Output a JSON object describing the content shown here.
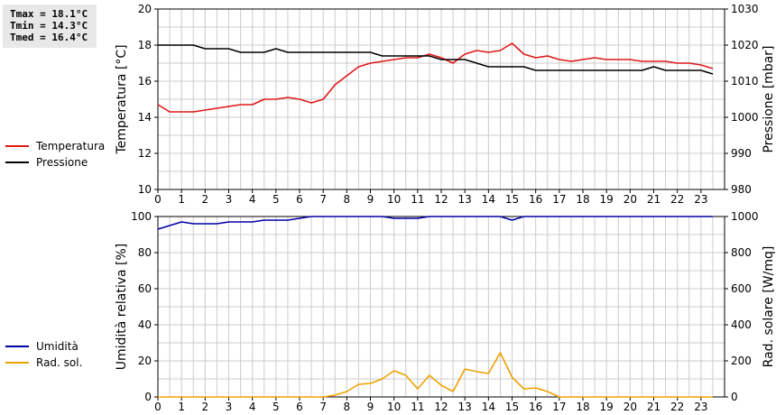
{
  "stats": {
    "tmax": "Tmax = 18.1°C",
    "tmin": "Tmin = 14.3°C",
    "tmed": "Tmed = 16.4°C"
  },
  "colors": {
    "temperature": "#e01818",
    "pressure": "#000000",
    "humidity": "#0000aa",
    "radiation": "#f0a000",
    "grid": "#cccccc",
    "stats_bg": "#e8e8e8"
  },
  "chart_data": [
    {
      "type": "line",
      "title": "",
      "xlabel": "",
      "x_ticks": [
        "0",
        "1",
        "2",
        "3",
        "4",
        "5",
        "6",
        "7",
        "8",
        "9",
        "10",
        "11",
        "12",
        "13",
        "14",
        "15",
        "16",
        "17",
        "18",
        "19",
        "20",
        "21",
        "22",
        "23"
      ],
      "xlim": [
        0,
        24
      ],
      "ylabel_left": "Temperatura [°C]",
      "ylabel_right": "Pressione [mbar]",
      "ylim_left": [
        10,
        20
      ],
      "ylim_right": [
        980,
        1030
      ],
      "yticks_left": [
        "10",
        "12",
        "14",
        "16",
        "18",
        "20"
      ],
      "yticks_right": [
        "980",
        "990",
        "1000",
        "1010",
        "1020",
        "1030"
      ],
      "grid": true,
      "series": [
        {
          "name": "Temperatura",
          "axis": "left",
          "color": "#e01818",
          "points": [
            [
              0,
              14.7
            ],
            [
              0.5,
              14.3
            ],
            [
              1,
              14.3
            ],
            [
              1.5,
              14.3
            ],
            [
              2,
              14.4
            ],
            [
              2.5,
              14.5
            ],
            [
              3,
              14.6
            ],
            [
              3.5,
              14.7
            ],
            [
              4,
              14.7
            ],
            [
              4.5,
              15.0
            ],
            [
              5,
              15.0
            ],
            [
              5.5,
              15.1
            ],
            [
              6,
              15.0
            ],
            [
              6.5,
              14.8
            ],
            [
              7,
              15.0
            ],
            [
              7.5,
              15.8
            ],
            [
              8,
              16.3
            ],
            [
              8.5,
              16.8
            ],
            [
              9,
              17.0
            ],
            [
              9.5,
              17.1
            ],
            [
              10,
              17.2
            ],
            [
              10.5,
              17.3
            ],
            [
              11,
              17.3
            ],
            [
              11.5,
              17.5
            ],
            [
              12,
              17.3
            ],
            [
              12.5,
              17.0
            ],
            [
              13,
              17.5
            ],
            [
              13.5,
              17.7
            ],
            [
              14,
              17.6
            ],
            [
              14.5,
              17.7
            ],
            [
              15,
              18.1
            ],
            [
              15.5,
              17.5
            ],
            [
              16,
              17.3
            ],
            [
              16.5,
              17.4
            ],
            [
              17,
              17.2
            ],
            [
              17.5,
              17.1
            ],
            [
              18,
              17.2
            ],
            [
              18.5,
              17.3
            ],
            [
              19,
              17.2
            ],
            [
              19.5,
              17.2
            ],
            [
              20,
              17.2
            ],
            [
              20.5,
              17.1
            ],
            [
              21,
              17.1
            ],
            [
              21.5,
              17.1
            ],
            [
              22,
              17.0
            ],
            [
              22.5,
              17.0
            ],
            [
              23,
              16.9
            ],
            [
              23.5,
              16.7
            ]
          ]
        },
        {
          "name": "Pressione",
          "axis": "right",
          "color": "#000000",
          "points": [
            [
              0,
              1020
            ],
            [
              0.5,
              1020
            ],
            [
              1,
              1020
            ],
            [
              1.5,
              1020
            ],
            [
              2,
              1019
            ],
            [
              2.5,
              1019
            ],
            [
              3,
              1019
            ],
            [
              3.5,
              1018
            ],
            [
              4,
              1018
            ],
            [
              4.5,
              1018
            ],
            [
              5,
              1019
            ],
            [
              5.5,
              1018
            ],
            [
              6,
              1018
            ],
            [
              6.5,
              1018
            ],
            [
              7,
              1018
            ],
            [
              7.5,
              1018
            ],
            [
              8,
              1018
            ],
            [
              8.5,
              1018
            ],
            [
              9,
              1018
            ],
            [
              9.5,
              1017
            ],
            [
              10,
              1017
            ],
            [
              10.5,
              1017
            ],
            [
              11,
              1017
            ],
            [
              11.5,
              1017
            ],
            [
              12,
              1016
            ],
            [
              12.5,
              1016
            ],
            [
              13,
              1016
            ],
            [
              13.5,
              1015
            ],
            [
              14,
              1014
            ],
            [
              14.5,
              1014
            ],
            [
              15,
              1014
            ],
            [
              15.5,
              1014
            ],
            [
              16,
              1013
            ],
            [
              16.5,
              1013
            ],
            [
              17,
              1013
            ],
            [
              17.5,
              1013
            ],
            [
              18,
              1013
            ],
            [
              18.5,
              1013
            ],
            [
              19,
              1013
            ],
            [
              19.5,
              1013
            ],
            [
              20,
              1013
            ],
            [
              20.5,
              1013
            ],
            [
              21,
              1014
            ],
            [
              21.5,
              1013
            ],
            [
              22,
              1013
            ],
            [
              22.5,
              1013
            ],
            [
              23,
              1013
            ],
            [
              23.5,
              1012
            ]
          ]
        }
      ]
    },
    {
      "type": "line",
      "title": "",
      "xlabel": "",
      "x_ticks": [
        "0",
        "1",
        "2",
        "3",
        "4",
        "5",
        "6",
        "7",
        "8",
        "9",
        "10",
        "11",
        "12",
        "13",
        "14",
        "15",
        "16",
        "17",
        "18",
        "19",
        "20",
        "21",
        "22",
        "23"
      ],
      "xlim": [
        0,
        24
      ],
      "ylabel_left": "Umidità relativa [%]",
      "ylabel_right": "Rad. solare [W/mq]",
      "ylim_left": [
        0,
        100
      ],
      "ylim_right": [
        0,
        1000
      ],
      "yticks_left": [
        "0",
        "20",
        "40",
        "60",
        "80",
        "100"
      ],
      "yticks_right": [
        "0",
        "200",
        "400",
        "600",
        "800",
        "1000"
      ],
      "grid": true,
      "series": [
        {
          "name": "Umidità",
          "axis": "left",
          "color": "#0000aa",
          "points": [
            [
              0,
              93
            ],
            [
              0.5,
              95
            ],
            [
              1,
              97
            ],
            [
              1.5,
              96
            ],
            [
              2,
              96
            ],
            [
              2.5,
              96
            ],
            [
              3,
              97
            ],
            [
              3.5,
              97
            ],
            [
              4,
              97
            ],
            [
              4.5,
              98
            ],
            [
              5,
              98
            ],
            [
              5.5,
              98
            ],
            [
              6,
              99
            ],
            [
              6.5,
              100
            ],
            [
              7,
              100
            ],
            [
              8,
              100
            ],
            [
              9,
              100
            ],
            [
              9.5,
              100
            ],
            [
              10,
              99
            ],
            [
              10.5,
              99
            ],
            [
              11,
              99
            ],
            [
              11.5,
              100
            ],
            [
              12,
              100
            ],
            [
              13,
              100
            ],
            [
              14,
              100
            ],
            [
              14.5,
              100
            ],
            [
              15,
              98
            ],
            [
              15.5,
              100
            ],
            [
              16,
              100
            ],
            [
              17,
              100
            ],
            [
              18,
              100
            ],
            [
              19,
              100
            ],
            [
              20,
              100
            ],
            [
              21,
              100
            ],
            [
              22,
              100
            ],
            [
              23,
              100
            ],
            [
              23.5,
              100
            ]
          ]
        },
        {
          "name": "Rad. sol.",
          "axis": "right",
          "color": "#f0a000",
          "points": [
            [
              0,
              0
            ],
            [
              1,
              0
            ],
            [
              2,
              0
            ],
            [
              3,
              0
            ],
            [
              4,
              0
            ],
            [
              5,
              0
            ],
            [
              6,
              0
            ],
            [
              7,
              0
            ],
            [
              7.5,
              10
            ],
            [
              8,
              30
            ],
            [
              8.5,
              70
            ],
            [
              9,
              75
            ],
            [
              9.5,
              100
            ],
            [
              10,
              145
            ],
            [
              10.5,
              120
            ],
            [
              11,
              45
            ],
            [
              11.5,
              120
            ],
            [
              12,
              65
            ],
            [
              12.5,
              30
            ],
            [
              13,
              155
            ],
            [
              13.5,
              140
            ],
            [
              14,
              130
            ],
            [
              14.5,
              245
            ],
            [
              15,
              110
            ],
            [
              15.5,
              45
            ],
            [
              16,
              50
            ],
            [
              16.5,
              30
            ],
            [
              17,
              0
            ],
            [
              18,
              0
            ],
            [
              19,
              0
            ],
            [
              20,
              0
            ],
            [
              21,
              0
            ],
            [
              22,
              0
            ],
            [
              23,
              0
            ],
            [
              23.5,
              0
            ]
          ]
        }
      ]
    }
  ]
}
